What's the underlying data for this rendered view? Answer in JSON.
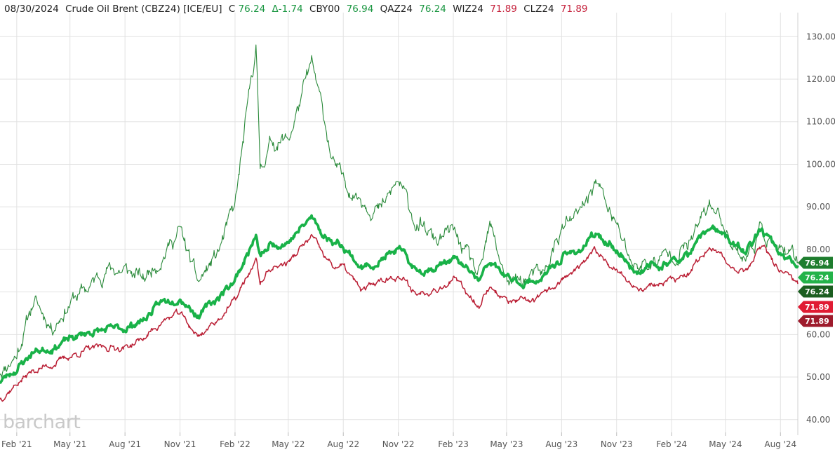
{
  "header": {
    "date": "08/30/2024",
    "name": "Crude Oil Brent (CBZ24) [ICE/EU]",
    "close_prefix": "C",
    "close_value": "76.24",
    "change": "Δ-1.74",
    "symbols": [
      {
        "symbol": "CBY00",
        "value": "76.94",
        "color": "#1a9641"
      },
      {
        "symbol": "QAZ24",
        "value": "76.24",
        "color": "#1a9641"
      },
      {
        "symbol": "WIZ24",
        "value": "71.89",
        "color": "#c41f3a"
      },
      {
        "symbol": "CLZ24",
        "value": "71.89",
        "color": "#c41f3a"
      }
    ]
  },
  "logo": "barchart",
  "colors": {
    "cby00": "#2a8a3a",
    "qaz24": "#19b248",
    "wiz24": "#ba1f35",
    "tag_cby": "#1e7d2e",
    "tag_qaz": "#24b34a",
    "tag_cbz": "#1b5e20",
    "tag_wiz": "#e01b33",
    "tag_clz": "#9e1b2c",
    "grid": "#e2e2e2"
  },
  "chart_data": {
    "type": "line",
    "x_range": [
      "2021-01-04",
      "2024-08-30"
    ],
    "ylim": [
      37,
      134
    ],
    "grid": true,
    "y_ticks": [
      "130.00",
      "120.00",
      "110.00",
      "100.00",
      "90.00",
      "80.00",
      "70.00",
      "60.00",
      "50.00",
      "40.00"
    ],
    "x_ticks": [
      "Feb '21",
      "May '21",
      "Aug '21",
      "Nov '21",
      "Feb '22",
      "May '22",
      "Aug '22",
      "Nov '22",
      "Feb '23",
      "May '23",
      "Aug '23",
      "Nov '23",
      "Feb '24",
      "May '24",
      "Aug '24"
    ],
    "right_tags": [
      {
        "value": 76.94,
        "label": "76.94"
      },
      {
        "value": 76.24,
        "label": "76.24"
      },
      {
        "value": 76.24,
        "label": "76.24"
      },
      {
        "value": 71.89,
        "label": "71.89"
      },
      {
        "value": 71.89,
        "label": "71.89"
      }
    ],
    "series": [
      {
        "name": "CBY00",
        "dates": [
          "2021-01-04",
          "2021-02-01",
          "2021-03-01",
          "2021-04-01",
          "2021-05-03",
          "2021-06-01",
          "2021-07-01",
          "2021-08-02",
          "2021-09-01",
          "2021-10-01",
          "2021-11-01",
          "2021-12-01",
          "2022-01-03",
          "2022-02-01",
          "2022-03-08",
          "2022-03-15",
          "2022-04-01",
          "2022-05-02",
          "2022-06-09",
          "2022-07-01",
          "2022-07-15",
          "2022-08-01",
          "2022-09-01",
          "2022-10-03",
          "2022-11-01",
          "2022-12-01",
          "2023-01-03",
          "2023-02-01",
          "2023-03-17",
          "2023-04-03",
          "2023-05-04",
          "2023-06-01",
          "2023-07-03",
          "2023-08-01",
          "2023-09-01",
          "2023-09-27",
          "2023-11-01",
          "2023-12-01",
          "2024-01-02",
          "2024-02-01",
          "2024-03-01",
          "2024-04-05",
          "2024-05-01",
          "2024-06-03",
          "2024-07-01",
          "2024-08-01",
          "2024-08-30"
        ],
        "values": [
          51.5,
          55.5,
          68,
          62,
          68,
          71,
          75.5,
          75,
          73,
          78.5,
          84.5,
          72,
          79,
          90,
          128,
          99,
          105,
          106,
          123.5,
          110,
          100,
          96,
          92,
          89,
          96,
          86,
          82,
          84,
          73,
          85,
          72,
          73,
          74,
          85,
          88,
          96.5,
          85,
          76,
          77,
          79,
          81,
          91,
          85,
          77.5,
          85,
          79,
          76.94
        ]
      },
      {
        "name": "QAZ24",
        "dates": [
          "2021-01-04",
          "2021-02-01",
          "2021-03-01",
          "2021-04-01",
          "2021-05-03",
          "2021-06-01",
          "2021-07-01",
          "2021-08-02",
          "2021-09-01",
          "2021-10-01",
          "2021-11-01",
          "2021-12-01",
          "2022-01-03",
          "2022-02-01",
          "2022-03-08",
          "2022-03-15",
          "2022-04-01",
          "2022-05-02",
          "2022-06-09",
          "2022-07-01",
          "2022-07-15",
          "2022-08-01",
          "2022-09-01",
          "2022-10-03",
          "2022-11-01",
          "2022-12-01",
          "2023-01-03",
          "2023-02-01",
          "2023-03-17",
          "2023-04-03",
          "2023-05-04",
          "2023-06-01",
          "2023-07-03",
          "2023-08-01",
          "2023-09-01",
          "2023-09-27",
          "2023-11-01",
          "2023-12-01",
          "2024-01-02",
          "2024-02-01",
          "2024-03-01",
          "2024-04-05",
          "2024-05-01",
          "2024-06-03",
          "2024-07-01",
          "2024-08-01",
          "2024-08-30"
        ],
        "values": [
          49,
          52,
          56,
          57,
          59,
          60.5,
          61,
          61.5,
          63.5,
          67.5,
          69,
          64.5,
          68.5,
          73,
          83,
          78,
          81,
          82,
          87.5,
          83,
          82,
          81,
          75.5,
          77.5,
          80,
          75,
          76,
          78,
          72.5,
          77,
          73,
          72,
          73.5,
          78,
          80,
          83.5,
          80,
          75,
          76,
          77,
          78.5,
          85.5,
          82.5,
          79.5,
          84.5,
          78.5,
          76.24
        ]
      },
      {
        "name": "WIZ24",
        "dates": [
          "2021-01-04",
          "2021-02-01",
          "2021-03-01",
          "2021-04-01",
          "2021-05-03",
          "2021-06-01",
          "2021-07-01",
          "2021-08-02",
          "2021-09-01",
          "2021-10-01",
          "2021-11-01",
          "2021-12-01",
          "2022-01-03",
          "2022-02-01",
          "2022-03-08",
          "2022-03-15",
          "2022-04-01",
          "2022-05-02",
          "2022-06-09",
          "2022-07-01",
          "2022-07-15",
          "2022-08-01",
          "2022-09-01",
          "2022-10-03",
          "2022-11-01",
          "2022-12-01",
          "2023-01-03",
          "2023-02-01",
          "2023-03-17",
          "2023-04-03",
          "2023-05-04",
          "2023-06-01",
          "2023-07-03",
          "2023-08-01",
          "2023-09-01",
          "2023-09-27",
          "2023-11-01",
          "2023-12-01",
          "2024-01-02",
          "2024-02-01",
          "2024-03-01",
          "2024-04-05",
          "2024-05-01",
          "2024-06-03",
          "2024-07-01",
          "2024-08-01",
          "2024-08-30"
        ],
        "values": [
          45,
          48.5,
          51.5,
          53,
          55,
          56.5,
          57,
          57,
          59,
          63,
          65,
          59.5,
          63.5,
          68,
          77.5,
          72,
          75.5,
          77,
          83,
          78,
          76,
          76,
          70,
          73,
          74,
          69.5,
          71,
          73,
          67,
          71.5,
          67.5,
          67.5,
          69,
          73,
          75.5,
          79.5,
          75.5,
          71,
          71.5,
          72.5,
          74,
          81,
          77,
          75,
          80.5,
          74.5,
          71.89
        ]
      }
    ]
  }
}
